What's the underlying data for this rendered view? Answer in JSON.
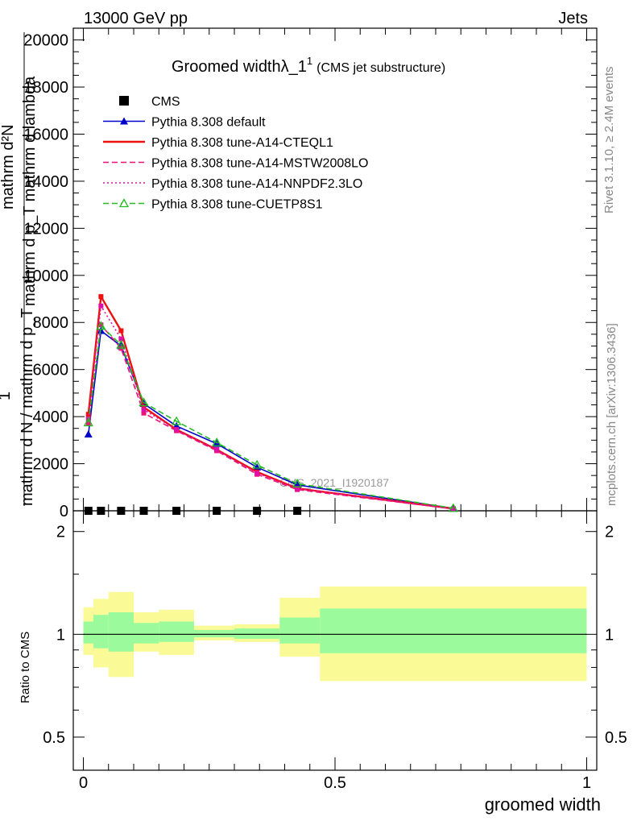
{
  "header": {
    "left": "13000 GeV pp",
    "right": "Jets"
  },
  "side_labels": {
    "top": "Rivet 3.1.10, ≥ 2.4M events",
    "bottom": "mcplots.cern.ch [arXiv:1306.3436]"
  },
  "title": {
    "main": "Groomed width",
    "symbol": "λ_1",
    "superscript": "1",
    "suffix": "(CMS jet substructure)"
  },
  "ylabel_main": {
    "line1": "mathrm d²N",
    "line2": "mathrm d p_T mathrm d lambda",
    "one": "1",
    "denominator": "mathrm d N / mathrm d p_T"
  },
  "watermark": "CMS_2021_I1920187",
  "ratio_ylabel": "Ratio to CMS",
  "xlabel": "groomed width",
  "chart_data": [
    {
      "type": "line",
      "panel": "main",
      "xlim": [
        -0.02,
        1.02
      ],
      "ylim": [
        0,
        20500
      ],
      "yticks": [
        0,
        2000,
        4000,
        6000,
        8000,
        10000,
        12000,
        14000,
        16000,
        18000,
        20000
      ],
      "ytick_labels": [
        "0",
        "2000",
        "4000",
        "6000",
        "8000",
        "10000",
        "12000",
        "14000",
        "16000",
        "18000",
        "20000"
      ],
      "x": [
        0.01,
        0.035,
        0.075,
        0.12,
        0.185,
        0.265,
        0.345,
        0.425,
        0.735
      ],
      "series": [
        {
          "name": "CMS",
          "style": "marker",
          "color": "#000000",
          "marker": "square",
          "x": [
            0.01,
            0.035,
            0.075,
            0.12,
            0.185,
            0.265,
            0.345,
            0.425
          ],
          "values": [
            0,
            0,
            0,
            0,
            0,
            0,
            0,
            0
          ]
        },
        {
          "name": "Pythia 8.308 default",
          "style": "solid",
          "color": "#0000cc",
          "marker": "triangle",
          "values": [
            3250,
            7650,
            7000,
            4550,
            3600,
            2850,
            1850,
            1100,
            100
          ]
        },
        {
          "name": "Pythia 8.308 tune-A14-CTEQL1",
          "style": "solid",
          "color": "#ee1111",
          "marker": "none",
          "values": [
            4100,
            9100,
            7650,
            4400,
            3450,
            2600,
            1650,
            950,
            90
          ]
        },
        {
          "name": "Pythia 8.308 tune-A14-MSTW2008LO",
          "style": "dashed",
          "color": "#ee1177",
          "marker": "none",
          "values": [
            3700,
            7900,
            6900,
            4150,
            3400,
            2550,
            1550,
            900,
            80
          ]
        },
        {
          "name": "Pythia 8.308 tune-A14-NNPDF2.3LO",
          "style": "dotted",
          "color": "#dd11aa",
          "marker": "none",
          "values": [
            3900,
            8700,
            7300,
            4300,
            3450,
            2600,
            1600,
            950,
            85
          ]
        },
        {
          "name": "Pythia 8.308 tune-CUETP8S1",
          "style": "dashed",
          "color": "#22bb22",
          "marker": "open-triangle",
          "values": [
            3750,
            7850,
            7050,
            4600,
            3800,
            2900,
            1950,
            1150,
            110
          ]
        }
      ],
      "legend": "top-left"
    },
    {
      "type": "area",
      "panel": "ratio",
      "xlim": [
        -0.02,
        1.02
      ],
      "ylim": [
        0.4,
        2.3
      ],
      "yscale": "log",
      "yticks": [
        0.5,
        1,
        2
      ],
      "ytick_labels": [
        "0.5",
        "1",
        "2"
      ],
      "xticks": [
        0,
        0.5,
        1
      ],
      "xtick_labels": [
        "0",
        "0.5",
        "1"
      ],
      "bin_edges": [
        0,
        0.02,
        0.05,
        0.1,
        0.15,
        0.22,
        0.3,
        0.39,
        0.47,
        1.0
      ],
      "stat_band": {
        "color": "#9bfa9b",
        "lo": [
          0.94,
          0.91,
          0.89,
          0.94,
          0.95,
          0.98,
          0.97,
          0.94,
          0.88
        ],
        "hi": [
          1.09,
          1.14,
          1.16,
          1.08,
          1.09,
          1.03,
          1.04,
          1.12,
          1.19
        ]
      },
      "syst_band": {
        "color": "#fafa96",
        "lo": [
          0.87,
          0.8,
          0.75,
          0.89,
          0.87,
          0.96,
          0.95,
          0.86,
          0.73
        ],
        "hi": [
          1.2,
          1.27,
          1.33,
          1.16,
          1.18,
          1.06,
          1.07,
          1.28,
          1.38
        ]
      },
      "reference": 1
    }
  ]
}
